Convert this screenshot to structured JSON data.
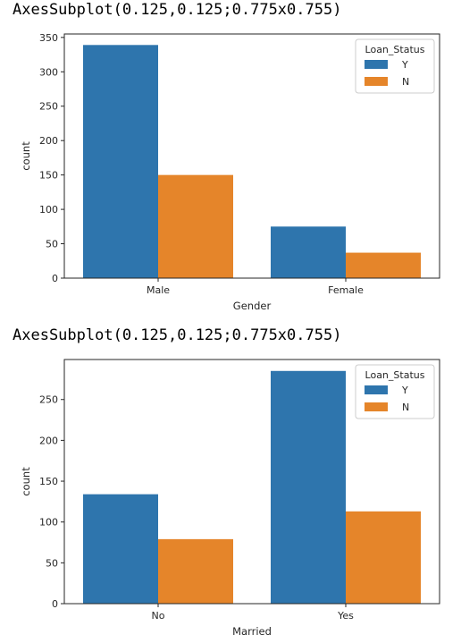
{
  "outputs": [
    {
      "text": "AxesSubplot(0.125,0.125;0.775x0.755)"
    },
    {
      "text": "AxesSubplot(0.125,0.125;0.775x0.755)"
    }
  ],
  "colors": {
    "Y": "#2e75ad",
    "N": "#e5852a"
  },
  "chart_data": [
    {
      "type": "bar",
      "categories": [
        "Male",
        "Female"
      ],
      "series": [
        {
          "name": "Y",
          "values": [
            339,
            75
          ]
        },
        {
          "name": "N",
          "values": [
            150,
            37
          ]
        }
      ],
      "xlabel": "Gender",
      "ylabel": "count",
      "ylim": [
        0,
        355
      ],
      "yticks": [
        0,
        50,
        100,
        150,
        200,
        250,
        300,
        350
      ],
      "legend": {
        "title": "Loan_Status",
        "placement": "top-right"
      },
      "grid": false
    },
    {
      "type": "bar",
      "categories": [
        "No",
        "Yes"
      ],
      "series": [
        {
          "name": "Y",
          "values": [
            134,
            285
          ]
        },
        {
          "name": "N",
          "values": [
            79,
            113
          ]
        }
      ],
      "xlabel": "Married",
      "ylabel": "count",
      "ylim": [
        0,
        299
      ],
      "yticks": [
        0,
        50,
        100,
        150,
        200,
        250
      ],
      "legend": {
        "title": "Loan_Status",
        "placement": "top-right"
      },
      "grid": false
    }
  ]
}
